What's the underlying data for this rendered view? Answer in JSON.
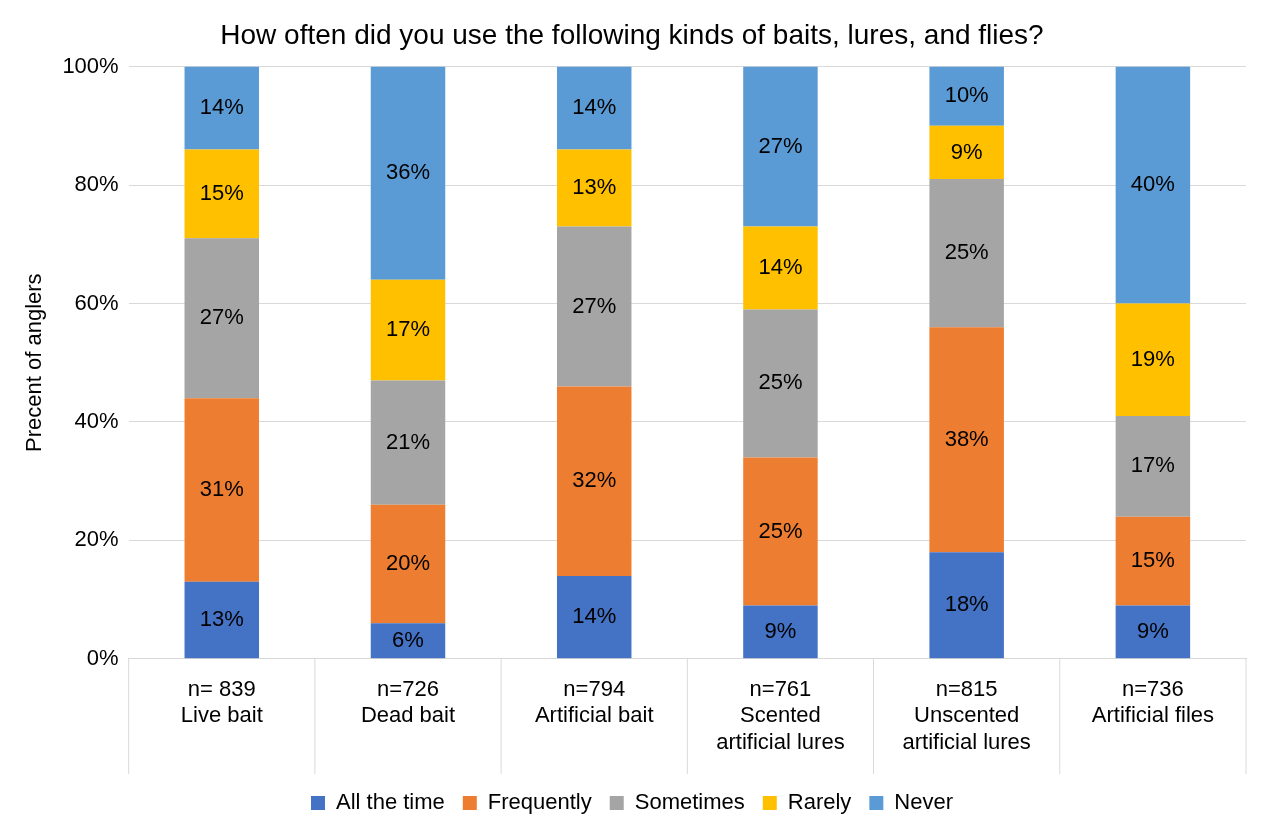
{
  "chart_data": {
    "type": "bar",
    "stacked": true,
    "title": "How often did you use the following kinds of baits, lures, and flies?",
    "ylabel": "Precent of anglers",
    "categories": [
      "n= 839\nLive bait",
      "n=726\nDead bait",
      "n=794\nArtificial bait",
      "n=761\nScented\nartificial lures",
      "n=815\nUnscented\nartificial lures",
      "n=736\nArtificial files"
    ],
    "series": [
      {
        "name": "All the time",
        "color": "#4472c4",
        "values": [
          13,
          6,
          14,
          9,
          18,
          9
        ],
        "value_labels": [
          "13%",
          "6%",
          "14%",
          "9%",
          "18%",
          "9%"
        ]
      },
      {
        "name": "Frequently",
        "color": "#ed7d31",
        "values": [
          31,
          20,
          32,
          25,
          38,
          15
        ],
        "value_labels": [
          "31%",
          "20%",
          "32%",
          "25%",
          "38%",
          "15%"
        ]
      },
      {
        "name": "Sometimes",
        "color": "#a5a5a5",
        "values": [
          27,
          21,
          27,
          25,
          25,
          17
        ],
        "value_labels": [
          "27%",
          "21%",
          "27%",
          "25%",
          "25%",
          "17%"
        ]
      },
      {
        "name": "Rarely",
        "color": "#ffc000",
        "values": [
          15,
          17,
          13,
          14,
          9,
          19
        ],
        "value_labels": [
          "15%",
          "17%",
          "13%",
          "14%",
          "9%",
          "19%"
        ]
      },
      {
        "name": "Never",
        "color": "#5b9bd5",
        "values": [
          14,
          36,
          14,
          27,
          10,
          40
        ],
        "value_labels": [
          "14%",
          "36%",
          "14%",
          "27%",
          "10%",
          "40%"
        ]
      }
    ],
    "ylim": [
      0,
      100
    ],
    "yticks": [
      {
        "value": 0,
        "label": "0%"
      },
      {
        "value": 20,
        "label": "20%"
      },
      {
        "value": 40,
        "label": "40%"
      },
      {
        "value": 60,
        "label": "60%"
      },
      {
        "value": 80,
        "label": "80%"
      },
      {
        "value": 100,
        "label": "100%"
      }
    ],
    "grid": "y",
    "legend": "bottom"
  }
}
